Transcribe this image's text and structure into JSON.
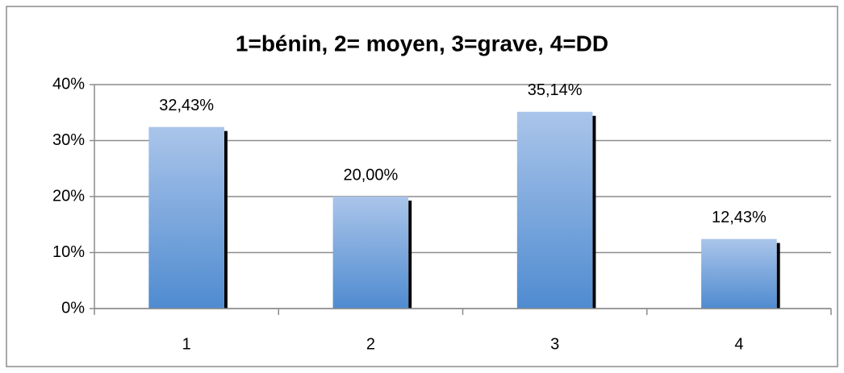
{
  "chart_data": {
    "type": "bar",
    "title": "1=bénin, 2= moyen, 3=grave, 4=DD",
    "categories": [
      "1",
      "2",
      "3",
      "4"
    ],
    "values": [
      32.43,
      20,
      35.14,
      12.43
    ],
    "value_labels": [
      "32,43%",
      "20,00%",
      "35,14%",
      "12,43%"
    ],
    "color": "#4f8bd0",
    "ylim": [
      0,
      40
    ],
    "yticks": [
      {
        "value": 0,
        "label": "0%"
      },
      {
        "value": 10,
        "label": "10%"
      },
      {
        "value": 20,
        "label": "20%"
      },
      {
        "value": 30,
        "label": "30%"
      },
      {
        "value": 40,
        "label": "40%"
      }
    ],
    "grid": true
  }
}
